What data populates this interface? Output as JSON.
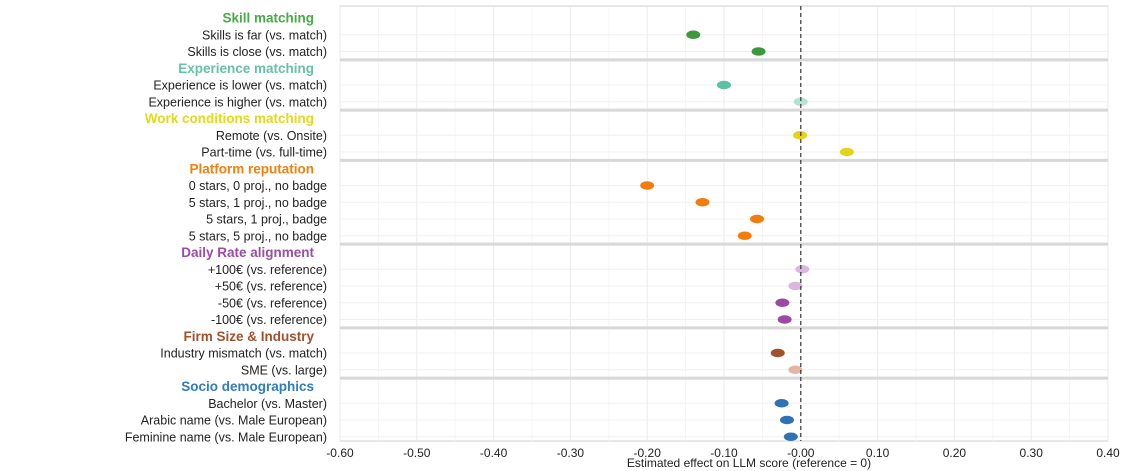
{
  "chart_data": {
    "type": "dot",
    "xlabel": "Estimated effect on LLM score (reference = 0)",
    "xlim": [
      -0.6,
      0.4
    ],
    "xticks": [
      "-0.60",
      "-0.50",
      "-0.40",
      "-0.30",
      "-0.20",
      "-0.10",
      "-0.00",
      "0.10",
      "0.20",
      "0.30",
      "0.40"
    ],
    "reference_line": 0,
    "grid": true,
    "groups": [
      {
        "name": "Skill matching",
        "color": "#4aaa47",
        "items": [
          {
            "label": "Skills is far (vs. match)",
            "value": -0.14,
            "color": "#3a9a3a"
          },
          {
            "label": "Skills is close (vs. match)",
            "value": -0.055,
            "color": "#3a9a3a"
          }
        ]
      },
      {
        "name": "Experience matching",
        "color": "#66c2a5",
        "items": [
          {
            "label": "Experience is lower (vs. match)",
            "value": -0.1,
            "color": "#5cc0a2"
          },
          {
            "label": "Experience is higher (vs. match)",
            "value": 0.0,
            "color": "#b8e2d2"
          }
        ]
      },
      {
        "name": "Work conditions matching",
        "color": "#e5d817",
        "items": [
          {
            "label": "Remote (vs. Onsite)",
            "value": -0.001,
            "color": "#e5d31a"
          },
          {
            "label": "Part-time (vs. full-time)",
            "value": 0.06,
            "color": "#e5d31a"
          }
        ]
      },
      {
        "name": "Platform reputation",
        "color": "#f57f0e",
        "items": [
          {
            "label": "0 stars, 0 proj., no badge",
            "value": -0.2,
            "color": "#f47c0d"
          },
          {
            "label": "5 stars, 1 proj., no badge",
            "value": -0.128,
            "color": "#f47c0d"
          },
          {
            "label": "5 stars, 1 proj., badge",
            "value": -0.057,
            "color": "#f47c0d"
          },
          {
            "label": "5 stars, 5 proj., no badge",
            "value": -0.073,
            "color": "#f47c0d"
          }
        ]
      },
      {
        "name": "Daily Rate alignment",
        "color": "#9c4ca3",
        "items": [
          {
            "label": "+100€ (vs. reference)",
            "value": 0.002,
            "color": "#dbb6de"
          },
          {
            "label": "+50€ (vs. reference)",
            "value": -0.007,
            "color": "#dbb6de"
          },
          {
            "label": "-50€ (vs. reference)",
            "value": -0.024,
            "color": "#9a4aa2"
          },
          {
            "label": "-100€ (vs. reference)",
            "value": -0.021,
            "color": "#9a4aa2"
          }
        ]
      },
      {
        "name": "Firm Size & Industry",
        "color": "#a0522d",
        "items": [
          {
            "label": "Industry mismatch (vs. match)",
            "value": -0.03,
            "color": "#a0522d"
          },
          {
            "label": "SME (vs. large)",
            "value": -0.007,
            "color": "#e3b5a5"
          }
        ]
      },
      {
        "name": "Socio demographics",
        "color": "#2f7cbf",
        "items": [
          {
            "label": "Bachelor (vs. Master)",
            "value": -0.025,
            "color": "#2f72b4"
          },
          {
            "label": "Arabic name (vs. Male European)",
            "value": -0.018,
            "color": "#2f72b4"
          },
          {
            "label": "Feminine name (vs. Male European)",
            "value": -0.013,
            "color": "#2f72b4"
          }
        ]
      }
    ]
  }
}
